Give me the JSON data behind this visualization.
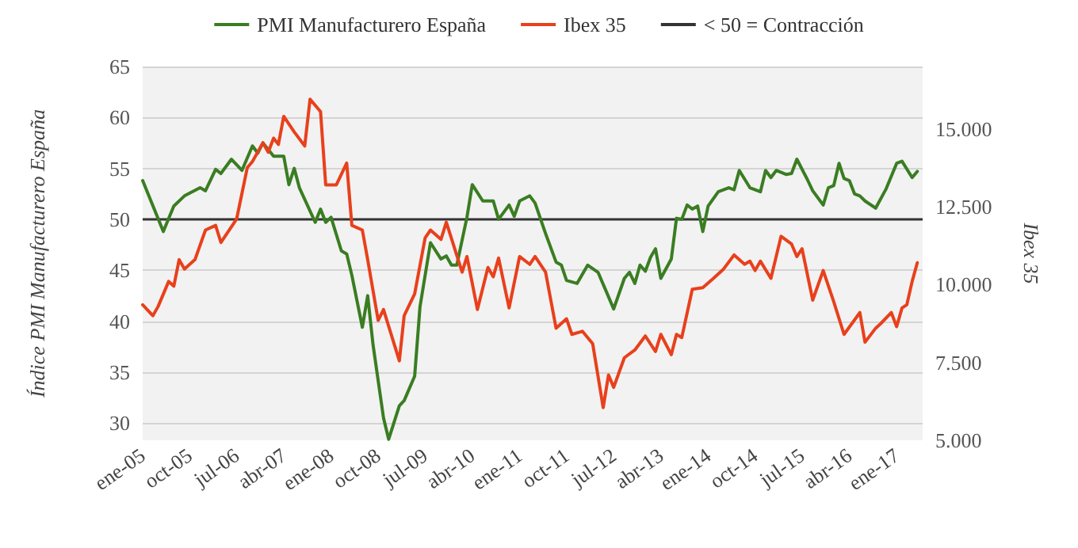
{
  "chart_data": {
    "type": "line",
    "ylabel": "Índice PMI Manufacturero España",
    "y2label": "Ibex 35",
    "marker": "none",
    "line_style": "solid",
    "grid": "y",
    "legend": "top",
    "xlim": [
      "2005-01",
      "2017-06"
    ],
    "xticks": [
      {
        "value": "2005-01",
        "label": "ene-05"
      },
      {
        "value": "2005-10",
        "label": "oct-05"
      },
      {
        "value": "2006-07",
        "label": "jul-06"
      },
      {
        "value": "2007-04",
        "label": "abr-07"
      },
      {
        "value": "2008-01",
        "label": "ene-08"
      },
      {
        "value": "2008-10",
        "label": "oct-08"
      },
      {
        "value": "2009-07",
        "label": "jul-09"
      },
      {
        "value": "2010-04",
        "label": "abr-10"
      },
      {
        "value": "2011-01",
        "label": "ene-11"
      },
      {
        "value": "2011-10",
        "label": "oct-11"
      },
      {
        "value": "2012-07",
        "label": "jul-12"
      },
      {
        "value": "2013-04",
        "label": "abr-13"
      },
      {
        "value": "2014-01",
        "label": "ene-14"
      },
      {
        "value": "2014-10",
        "label": "oct-14"
      },
      {
        "value": "2015-07",
        "label": "jul-15"
      },
      {
        "value": "2016-04",
        "label": "abr-16"
      },
      {
        "value": "2017-01",
        "label": "ene-17"
      }
    ],
    "ylim": [
      28.3,
      65
    ],
    "yticks": [
      30,
      35,
      40,
      45,
      50,
      55,
      60,
      65
    ],
    "y2lim": [
      5000,
      17000
    ],
    "y2ticks": [
      {
        "value": 5000,
        "label": "5.000"
      },
      {
        "value": 7500,
        "label": "7.500"
      },
      {
        "value": 10000,
        "label": "10.000"
      },
      {
        "value": 12500,
        "label": "12.500"
      },
      {
        "value": 15000,
        "label": "15.000"
      }
    ],
    "ref_lines": [
      {
        "axis": "y",
        "value": 50,
        "label": "< 50 = Contracción",
        "color": "#333333"
      }
    ],
    "series": [
      {
        "name": "PMI Manufacturero España",
        "color": "#3a7d22",
        "x": [
          "2005-01",
          "2005-05",
          "2005-07",
          "2005-09",
          "2005-12",
          "2006-01",
          "2006-03",
          "2006-04",
          "2006-06",
          "2006-08",
          "2006-10",
          "2006-11",
          "2006-12",
          "2007-02",
          "2007-04",
          "2007-05",
          "2007-06",
          "2007-07",
          "2007-10",
          "2007-11",
          "2007-12",
          "2008-01",
          "2008-03",
          "2008-04",
          "2008-05",
          "2008-07",
          "2008-08",
          "2008-09",
          "2008-11",
          "2008-12",
          "2009-02",
          "2009-03",
          "2009-05",
          "2009-06",
          "2009-08",
          "2009-10",
          "2009-11",
          "2009-12",
          "2010-01",
          "2010-03",
          "2010-04",
          "2010-06",
          "2010-08",
          "2010-09",
          "2010-11",
          "2010-12",
          "2011-01",
          "2011-03",
          "2011-04",
          "2011-06",
          "2011-08",
          "2011-09",
          "2011-10",
          "2011-12",
          "2012-02",
          "2012-04",
          "2012-07",
          "2012-09",
          "2012-10",
          "2012-11",
          "2012-12",
          "2013-01",
          "2013-02",
          "2013-03",
          "2013-04",
          "2013-06",
          "2013-07",
          "2013-08",
          "2013-09",
          "2013-10",
          "2013-11",
          "2013-12",
          "2014-01",
          "2014-03",
          "2014-05",
          "2014-06",
          "2014-07",
          "2014-09",
          "2014-11",
          "2014-12",
          "2015-01",
          "2015-02",
          "2015-04",
          "2015-05",
          "2015-06",
          "2015-08",
          "2015-09",
          "2015-11",
          "2015-12",
          "2016-01",
          "2016-02",
          "2016-03",
          "2016-04",
          "2016-05",
          "2016-06",
          "2016-07",
          "2016-09",
          "2016-11",
          "2017-01",
          "2017-02",
          "2017-04",
          "2017-05"
        ],
        "values": [
          53.8,
          48.8,
          51.3,
          52.3,
          53.1,
          52.8,
          54.9,
          54.5,
          55.9,
          54.8,
          57.2,
          56.5,
          57.5,
          56.2,
          56.2,
          53.4,
          55,
          53.1,
          49.7,
          51,
          49.7,
          50.2,
          46.9,
          46.6,
          44.5,
          39.4,
          42.5,
          37.7,
          30.5,
          28.4,
          31.7,
          32.2,
          34.6,
          41.4,
          47.7,
          46.1,
          46.4,
          45.5,
          45.5,
          50.2,
          53.4,
          51.8,
          51.8,
          50,
          51.4,
          50.3,
          51.8,
          52.3,
          51.6,
          48.6,
          45.8,
          45.5,
          44,
          43.7,
          45.5,
          44.8,
          41.2,
          44.2,
          44.8,
          43.7,
          45.5,
          44.9,
          46.3,
          47.1,
          44.2,
          46.1,
          50.1,
          50,
          51.4,
          51,
          51.3,
          48.8,
          51.3,
          52.7,
          53.1,
          52.9,
          54.8,
          53.1,
          52.7,
          54.8,
          54.1,
          54.8,
          54.4,
          54.5,
          55.9,
          53.9,
          52.8,
          51.4,
          53.1,
          53.3,
          55.5,
          54,
          53.8,
          52.5,
          52.3,
          51.8,
          51.1,
          53,
          55.5,
          55.7,
          54.1,
          54.7
        ]
      },
      {
        "name": "Ibex 35",
        "color": "#e8401c",
        "axis": "y2",
        "x": [
          "2005-01",
          "2005-03",
          "2005-04",
          "2005-06",
          "2005-07",
          "2005-08",
          "2005-09",
          "2005-11",
          "2006-01",
          "2006-03",
          "2006-04",
          "2006-07",
          "2006-09",
          "2006-10",
          "2006-12",
          "2007-01",
          "2007-02",
          "2007-03",
          "2007-04",
          "2007-06",
          "2007-08",
          "2007-09",
          "2007-11",
          "2007-12",
          "2008-02",
          "2008-04",
          "2008-05",
          "2008-07",
          "2008-08",
          "2008-10",
          "2008-11",
          "2009-02",
          "2009-03",
          "2009-05",
          "2009-07",
          "2009-08",
          "2009-10",
          "2009-11",
          "2010-02",
          "2010-03",
          "2010-05",
          "2010-07",
          "2010-08",
          "2010-09",
          "2010-11",
          "2011-01",
          "2011-03",
          "2011-04",
          "2011-06",
          "2011-08",
          "2011-10",
          "2011-11",
          "2012-01",
          "2012-03",
          "2012-05",
          "2012-06",
          "2012-07",
          "2012-09",
          "2012-11",
          "2013-01",
          "2013-03",
          "2013-04",
          "2013-06",
          "2013-07",
          "2013-08",
          "2013-10",
          "2013-12",
          "2014-02",
          "2014-04",
          "2014-06",
          "2014-08",
          "2014-09",
          "2014-10",
          "2014-11",
          "2015-01",
          "2015-03",
          "2015-05",
          "2015-06",
          "2015-07",
          "2015-09",
          "2015-11",
          "2016-01",
          "2016-03",
          "2016-06",
          "2016-07",
          "2016-09",
          "2016-10",
          "2016-12",
          "2017-01",
          "2017-02",
          "2017-03",
          "2017-04",
          "2017-05"
        ],
        "values": [
          9350,
          9000,
          9300,
          10100,
          9950,
          10800,
          10500,
          10800,
          11750,
          11900,
          11350,
          12100,
          13750,
          13950,
          14550,
          14250,
          14700,
          14500,
          15400,
          14900,
          14450,
          15950,
          15550,
          13200,
          13200,
          13900,
          11900,
          11750,
          10800,
          8850,
          9200,
          7550,
          9000,
          9700,
          11500,
          11750,
          11450,
          12000,
          10400,
          10900,
          9200,
          10550,
          10250,
          10850,
          9250,
          10900,
          10650,
          10900,
          10400,
          8600,
          8900,
          8400,
          8500,
          8100,
          6050,
          7100,
          6700,
          7650,
          7900,
          8350,
          7850,
          8400,
          7750,
          8400,
          8300,
          9850,
          9900,
          10200,
          10500,
          10950,
          10650,
          10750,
          10450,
          10750,
          10200,
          11550,
          11300,
          10900,
          11150,
          9500,
          10450,
          9450,
          8400,
          9100,
          8150,
          8600,
          8750,
          9100,
          8650,
          9250,
          9350,
          10100,
          10700
        ]
      }
    ]
  }
}
